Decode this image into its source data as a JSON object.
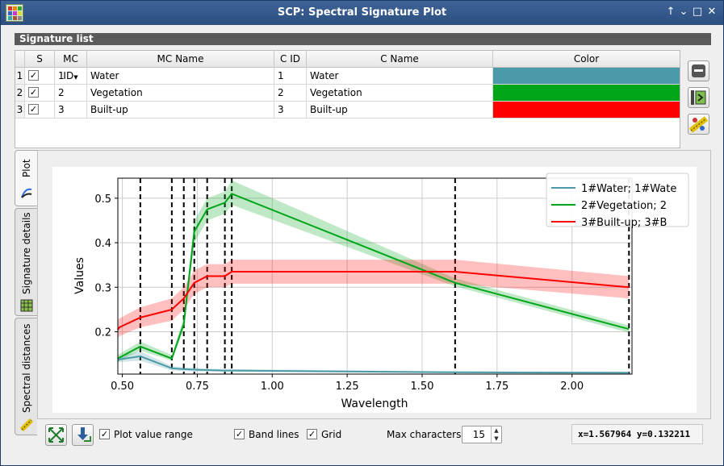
{
  "window": {
    "title": "SCP: Spectral Signature Plot"
  },
  "signature_list": {
    "header": "Signature list",
    "columns": [
      "S",
      "MC ID",
      "MC Name",
      "C ID",
      "C Name",
      "Color"
    ],
    "rows": [
      {
        "num": "1",
        "checked": true,
        "mc_id": "1",
        "mc_name": "Water",
        "c_id": "1",
        "c_name": "Water",
        "color": "#4b9aa7"
      },
      {
        "num": "2",
        "checked": true,
        "mc_id": "2",
        "mc_name": "Vegetation",
        "c_id": "2",
        "c_name": "Vegetation",
        "color": "#00a61a"
      },
      {
        "num": "3",
        "checked": true,
        "mc_id": "3",
        "mc_name": "Built-up",
        "c_id": "3",
        "c_name": "Built-up",
        "color": "#ff0000"
      }
    ]
  },
  "tabs": [
    "Plot",
    "Signature details",
    "Spectral distances"
  ],
  "controls": {
    "plot_value_range": {
      "label": "Plot value range",
      "checked": true
    },
    "band_lines": {
      "label": "Band lines",
      "checked": true
    },
    "grid": {
      "label": "Grid",
      "checked": true
    },
    "max_characters": {
      "label": "Max characters",
      "value": "15"
    },
    "coords": "x=1.567964 y=0.132211"
  },
  "chart_data": {
    "type": "line",
    "xlabel": "Wavelength",
    "ylabel": "Values",
    "xlim": [
      0.485,
      2.2
    ],
    "ylim": [
      0.105,
      0.545
    ],
    "xticks": [
      "0.50",
      "0.75",
      "1.00",
      "1.25",
      "1.50",
      "1.75",
      "2.00"
    ],
    "yticks": [
      "0.2",
      "0.3",
      "0.4",
      "0.5"
    ],
    "grid": true,
    "legend_position": "top-right",
    "band_lines": [
      0.56,
      0.665,
      0.705,
      0.74,
      0.783,
      0.842,
      0.865,
      1.61,
      2.19
    ],
    "x": [
      0.485,
      0.49,
      0.56,
      0.665,
      0.705,
      0.74,
      0.783,
      0.842,
      0.865,
      1.61,
      2.19
    ],
    "series": [
      {
        "name": "1#Water; 1#Wate",
        "color": "#4b9aa7",
        "values": [
          0.135,
          0.138,
          0.145,
          0.118,
          0.116,
          0.115,
          0.114,
          0.113,
          0.113,
          0.109,
          0.108
        ],
        "lower": [
          0.13,
          0.132,
          0.135,
          0.113,
          0.112,
          0.111,
          0.111,
          0.11,
          0.11,
          0.107,
          0.106
        ],
        "upper": [
          0.14,
          0.145,
          0.156,
          0.123,
          0.12,
          0.119,
          0.117,
          0.116,
          0.116,
          0.111,
          0.11
        ]
      },
      {
        "name": "2#Vegetation; 2",
        "color": "#00a61a",
        "values": [
          0.14,
          0.142,
          0.167,
          0.14,
          0.218,
          0.425,
          0.475,
          0.49,
          0.51,
          0.31,
          0.206
        ],
        "lower": [
          0.132,
          0.135,
          0.158,
          0.135,
          0.205,
          0.4,
          0.45,
          0.465,
          0.485,
          0.302,
          0.198
        ],
        "upper": [
          0.148,
          0.15,
          0.178,
          0.148,
          0.232,
          0.45,
          0.5,
          0.515,
          0.54,
          0.32,
          0.214
        ]
      },
      {
        "name": "3#Built-up; 3#B",
        "color": "#ff0000",
        "values": [
          0.205,
          0.21,
          0.232,
          0.25,
          0.275,
          0.31,
          0.325,
          0.325,
          0.335,
          0.335,
          0.3
        ],
        "lower": [
          0.185,
          0.19,
          0.21,
          0.225,
          0.25,
          0.285,
          0.3,
          0.3,
          0.308,
          0.308,
          0.275
        ],
        "upper": [
          0.225,
          0.23,
          0.255,
          0.275,
          0.3,
          0.338,
          0.352,
          0.352,
          0.362,
          0.362,
          0.325
        ]
      }
    ]
  }
}
